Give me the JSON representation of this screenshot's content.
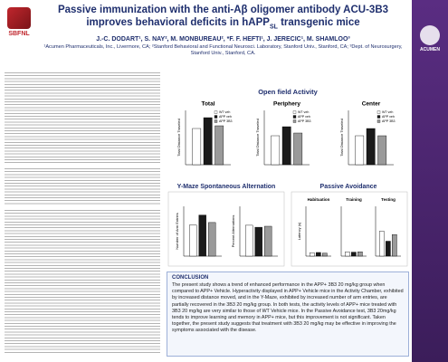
{
  "header": {
    "title": "Passive immunization with the anti-Aβ oligomer antibody ACU-3B3 improves behavioral deficits in hAPP",
    "title_sub": "SL",
    "title_end": " transgenic mice",
    "authors": "J.-C. DODART¹, S. NAY², M. MONBUREAU², *F. F. HEFTI¹, J. JERECIC¹, M. SHAMLOO³",
    "affiliations": "¹Acumen Pharmaceuticals, Inc., Livermore, CA; ²Stanford Behavioral and Functional Neurosci. Laboratory, Stanford Univ., Stanford, CA; ³Dept. of Neurosurgery, Stanford Univ., Stanford, CA.",
    "left_logo": "SBFNL",
    "right_logo": "ACUMEN"
  },
  "sections": {
    "open_field": "Open field Activity",
    "ymaze": "Y-Maze Spontaneous Alternation",
    "passive": "Passive Avoidance",
    "conclusion_heading": "CONCLUSION",
    "conclusion": "The present study shows a trend of enhanced performance in the APP+ 3B3 20 mg/kg group when compared to APP+ Vehicle. Hyperactivity displayed in APP+ Vehicle mice in the Activity Chamber, exhibited by increased distance moved, and in the Y-Maze, exhibited by increased number of arm entries, are partially recovered in the 3B3 20 mg/kg group. In both tests, the activity levels of APP+ mice treated with 3B3 20 mg/kg are very similar to those of WT Vehicle mice. In the Passive Avoidance test, 3B3 20mg/kg tends to improve learning and memory in APP+ mice, but this improvement is not significant. Taken together, the present study suggests that treatment with 3B3 20 mg/kg may be effective in improving the symptoms associated with the disease."
  },
  "legend": [
    {
      "name": "WT veh",
      "color": "#ffffff"
    },
    {
      "name": "APP veh",
      "color": "#1a1a1a"
    },
    {
      "name": "APP 3B3",
      "color": "#9a9a9a"
    }
  ],
  "charts": [
    {
      "title": "Total",
      "ylabel": "Total Distance Traveled",
      "ylim": [
        0,
        6000
      ],
      "values": [
        4000,
        5200,
        4300
      ]
    },
    {
      "title": "Periphery",
      "ylabel": "Total Distance Traveled",
      "ylim": [
        0,
        6000
      ],
      "values": [
        3200,
        4200,
        3500
      ]
    },
    {
      "title": "Center",
      "ylabel": "Total Distance Traveled",
      "ylim": [
        0,
        1500
      ],
      "values": [
        800,
        1000,
        800
      ]
    },
    {
      "ylabel": "Number of Arm Entries",
      "ylim": [
        0,
        40
      ],
      "values": [
        25,
        33,
        27
      ]
    },
    {
      "ylabel": "Percent Alternations",
      "ylim": [
        0,
        100
      ],
      "values": [
        62,
        58,
        60
      ]
    },
    {
      "title": "Habituation",
      "ylabel": "Latency (s)",
      "ylim": [
        0,
        300
      ],
      "values": [
        20,
        22,
        18
      ]
    },
    {
      "title": "Training",
      "ylim": [
        0,
        300
      ],
      "values": [
        25,
        24,
        26
      ]
    },
    {
      "title": "Testing",
      "ylim": [
        0,
        300
      ],
      "values": [
        150,
        90,
        130
      ]
    }
  ]
}
